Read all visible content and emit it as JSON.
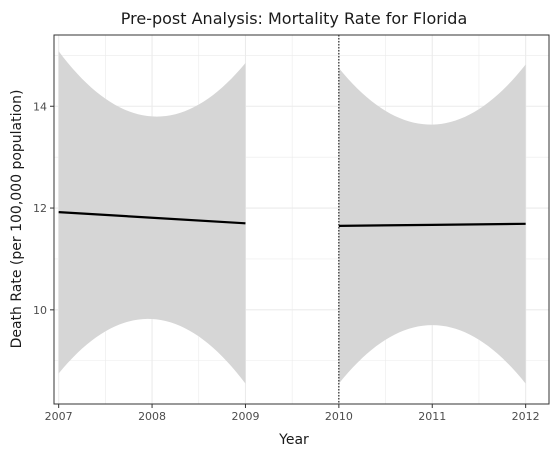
{
  "chart_data": {
    "type": "line",
    "title": "Pre-post Analysis: Mortality Rate for Florida",
    "xlabel": "Year",
    "ylabel": "Death Rate (per 100,000 population)",
    "xlim": [
      2006.95,
      2012.25
    ],
    "ylim": [
      8.15,
      15.4
    ],
    "x_ticks": [
      2007,
      2008,
      2009,
      2010,
      2011,
      2012
    ],
    "y_ticks": [
      10,
      12,
      14
    ],
    "intervention_x": 2010,
    "grid": true,
    "colors": {
      "line": "#000000",
      "band": "#d6d6d6",
      "grid": "#ebebeb",
      "panel_border": "#333333"
    },
    "series": [
      {
        "period": "pre",
        "x": [
          2007,
          2008,
          2009
        ],
        "y": [
          11.92,
          11.81,
          11.7
        ],
        "lower": [
          8.75,
          9.82,
          8.55
        ],
        "upper": [
          15.08,
          13.8,
          14.85
        ]
      },
      {
        "period": "post",
        "x": [
          2010,
          2011,
          2012
        ],
        "y": [
          11.65,
          11.67,
          11.69
        ],
        "lower": [
          8.55,
          9.7,
          8.55
        ],
        "upper": [
          14.75,
          13.64,
          14.82
        ]
      }
    ]
  }
}
